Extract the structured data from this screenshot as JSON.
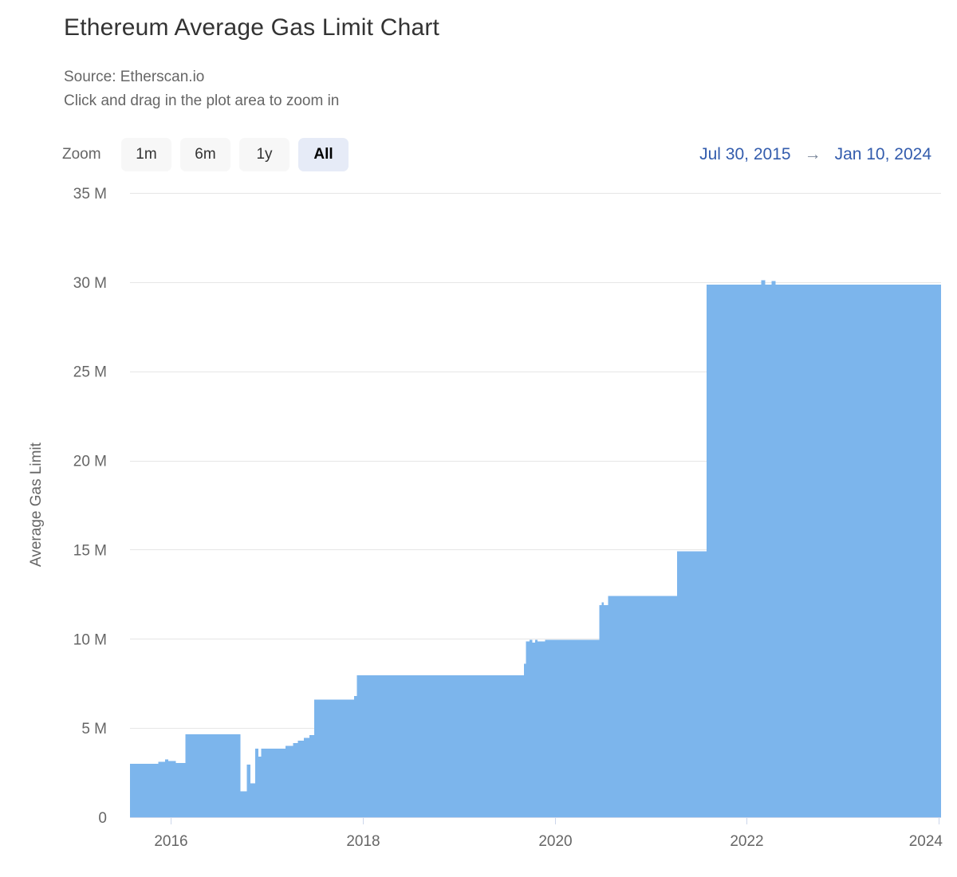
{
  "header": {
    "title": "Ethereum Average Gas Limit Chart",
    "subtitle_source": "Source: Etherscan.io",
    "subtitle_hint": "Click and drag in the plot area to zoom in"
  },
  "range_selector": {
    "zoom_label": "Zoom",
    "buttons": [
      {
        "label": "1m",
        "selected": false
      },
      {
        "label": "6m",
        "selected": false
      },
      {
        "label": "1y",
        "selected": false
      },
      {
        "label": "All",
        "selected": true
      }
    ],
    "from_date": "Jul 30, 2015",
    "arrow": "→",
    "to_date": "Jan 10, 2024"
  },
  "colors": {
    "series_blue": "#7cb5ec",
    "grid_line": "#e6e6e6",
    "axis_line": "#ccd6eb",
    "title_text": "#333333",
    "muted_text": "#666666",
    "date_link": "#335cad",
    "button_bg": "#f7f7f7",
    "button_selected_bg": "#e6ebf7"
  },
  "chart_data": {
    "type": "area",
    "step": true,
    "title": "Ethereum Average Gas Limit Chart",
    "subtitle": "Source: Etherscan.io",
    "xlabel": "",
    "ylabel": "Average Gas Limit",
    "y_unit": "M",
    "values_are": "millions of gas",
    "ylim": [
      0,
      35
    ],
    "y_ticks": [
      0,
      5,
      10,
      15,
      20,
      25,
      30,
      35
    ],
    "y_tick_labels": [
      "0",
      "5 M",
      "10 M",
      "15 M",
      "20 M",
      "25 M",
      "30 M",
      "35 M"
    ],
    "x_range": [
      "2015-07-30",
      "2024-01-10"
    ],
    "x_tick_years": [
      2016,
      2018,
      2020,
      2022,
      2024
    ],
    "grid": true,
    "legend": false,
    "series": [
      {
        "name": "Average Gas Limit",
        "color": "#7cb5ec",
        "points": [
          [
            "2015-07-30",
            3.0
          ],
          [
            "2015-11-15",
            3.1
          ],
          [
            "2015-12-10",
            3.25
          ],
          [
            "2015-12-22",
            3.15
          ],
          [
            "2016-01-20",
            3.05
          ],
          [
            "2016-02-26",
            4.65
          ],
          [
            "2016-09-22",
            1.45
          ],
          [
            "2016-10-17",
            2.95
          ],
          [
            "2016-10-30",
            1.9
          ],
          [
            "2016-11-18",
            3.85
          ],
          [
            "2016-11-30",
            3.4
          ],
          [
            "2016-12-10",
            3.85
          ],
          [
            "2017-03-12",
            4.0
          ],
          [
            "2017-04-10",
            4.15
          ],
          [
            "2017-04-28",
            4.3
          ],
          [
            "2017-05-22",
            4.45
          ],
          [
            "2017-06-12",
            4.6
          ],
          [
            "2017-06-30",
            6.6
          ],
          [
            "2017-11-28",
            6.8
          ],
          [
            "2017-12-09",
            7.95
          ],
          [
            "2019-09-06",
            8.6
          ],
          [
            "2019-09-14",
            9.85
          ],
          [
            "2019-09-28",
            9.95
          ],
          [
            "2019-10-08",
            9.8
          ],
          [
            "2019-10-18",
            9.95
          ],
          [
            "2019-10-28",
            9.85
          ],
          [
            "2019-11-25",
            9.95
          ],
          [
            "2020-06-18",
            11.9
          ],
          [
            "2020-06-28",
            12.05
          ],
          [
            "2020-07-05",
            11.9
          ],
          [
            "2020-07-22",
            12.4
          ],
          [
            "2021-04-10",
            14.9
          ],
          [
            "2021-08-01",
            29.85
          ],
          [
            "2022-02-25",
            30.1
          ],
          [
            "2022-03-12",
            29.85
          ],
          [
            "2022-04-05",
            30.05
          ],
          [
            "2022-04-20",
            29.85
          ]
        ]
      }
    ]
  }
}
